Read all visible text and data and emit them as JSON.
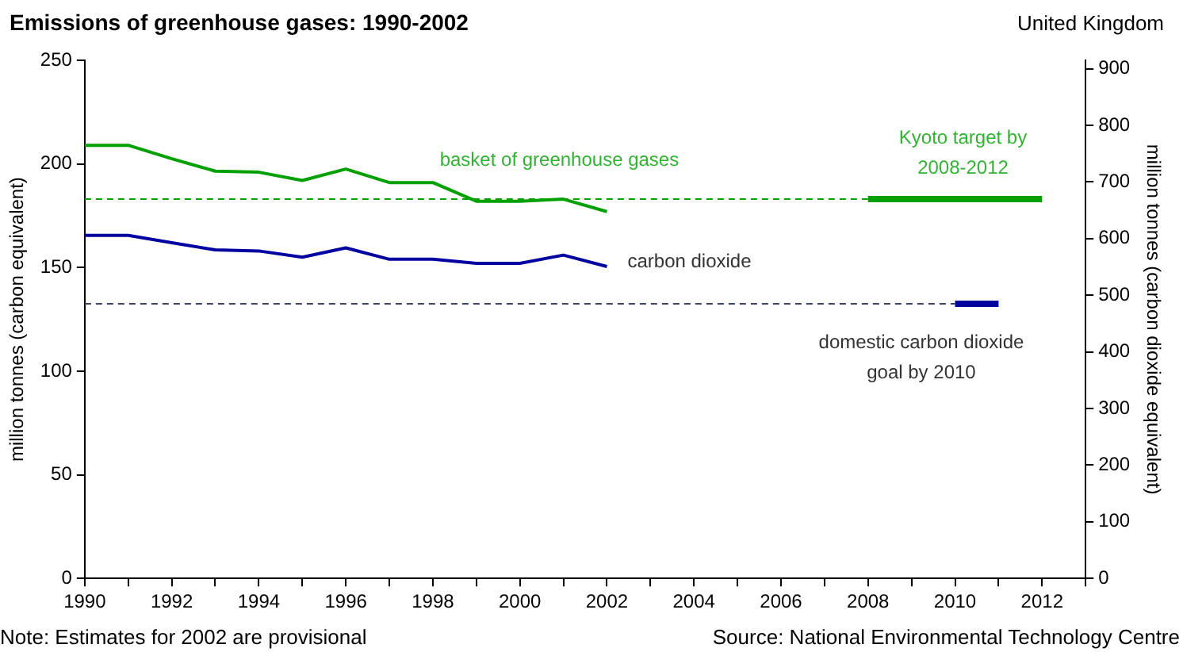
{
  "chart_data": {
    "type": "line",
    "title": "Emissions of greenhouse gases: 1990-2002",
    "subtitle": "United Kingdom",
    "ylabel": "million tonnes (carbon equivalent)",
    "y2label": "million tonnes (carbon dioxide equivalent)",
    "x": [
      1990,
      1991,
      1992,
      1993,
      1994,
      1995,
      1996,
      1997,
      1998,
      1999,
      2000,
      2001,
      2002
    ],
    "series": [
      {
        "name": "basket of greenhouse gases",
        "color": "#00a000",
        "values": [
          209,
          209,
          202.5,
          196.5,
          196,
          192,
          197.5,
          191,
          191,
          182,
          182,
          183,
          177
        ]
      },
      {
        "name": "carbon dioxide",
        "color": "#0000a0",
        "values": [
          165.5,
          165.5,
          162,
          158.5,
          158,
          155,
          159.5,
          154,
          154,
          152,
          152,
          156,
          150.5
        ]
      },
      {
        "color": "#00a000",
        "x": [
          1990,
          2008
        ],
        "values": [
          183,
          183
        ],
        "line_style": "dashed"
      },
      {
        "color": "#404060",
        "x": [
          1990,
          2010
        ],
        "values": [
          132.5,
          132.5
        ],
        "line_style": "dashed"
      },
      {
        "name": "Kyoto target by 2008-2012",
        "color": "#00a000",
        "x": [
          2008,
          2012
        ],
        "values": [
          183,
          183
        ]
      },
      {
        "name": "domestic carbon dioxide goal by 2010",
        "color": "#0000a0",
        "x": [
          2010,
          2011
        ],
        "values": [
          132.5,
          132.5
        ]
      }
    ],
    "xlim": [
      1990,
      2013
    ],
    "xticks": [
      1990,
      {
        "value": 1991,
        "label": null
      },
      1992,
      {
        "value": 1993,
        "label": null
      },
      1994,
      {
        "value": 1995,
        "label": null
      },
      1996,
      {
        "value": 1997,
        "label": null
      },
      1998,
      {
        "value": 1999,
        "label": null
      },
      2000,
      {
        "value": 2001,
        "label": null
      },
      2002,
      {
        "value": 2003,
        "label": null
      },
      2004,
      {
        "value": 2005,
        "label": null
      },
      2006,
      {
        "value": 2007,
        "label": null
      },
      2008,
      {
        "value": 2009,
        "label": null
      },
      2010,
      {
        "value": 2011,
        "label": null
      },
      2012,
      {
        "value": 2013,
        "label": null
      }
    ],
    "ylim": [
      0,
      250
    ],
    "yticks": [
      0,
      50,
      100,
      150,
      200,
      250
    ],
    "y2lim": [
      0,
      915
    ],
    "y2ticks": [
      0,
      100,
      200,
      300,
      400,
      500,
      600,
      700,
      800,
      900
    ],
    "grid": false,
    "legend": false,
    "marker": "none",
    "annotations": [
      "Note: Estimates for 2002 are provisional",
      "Source: National Environmental Technology Centre"
    ]
  }
}
